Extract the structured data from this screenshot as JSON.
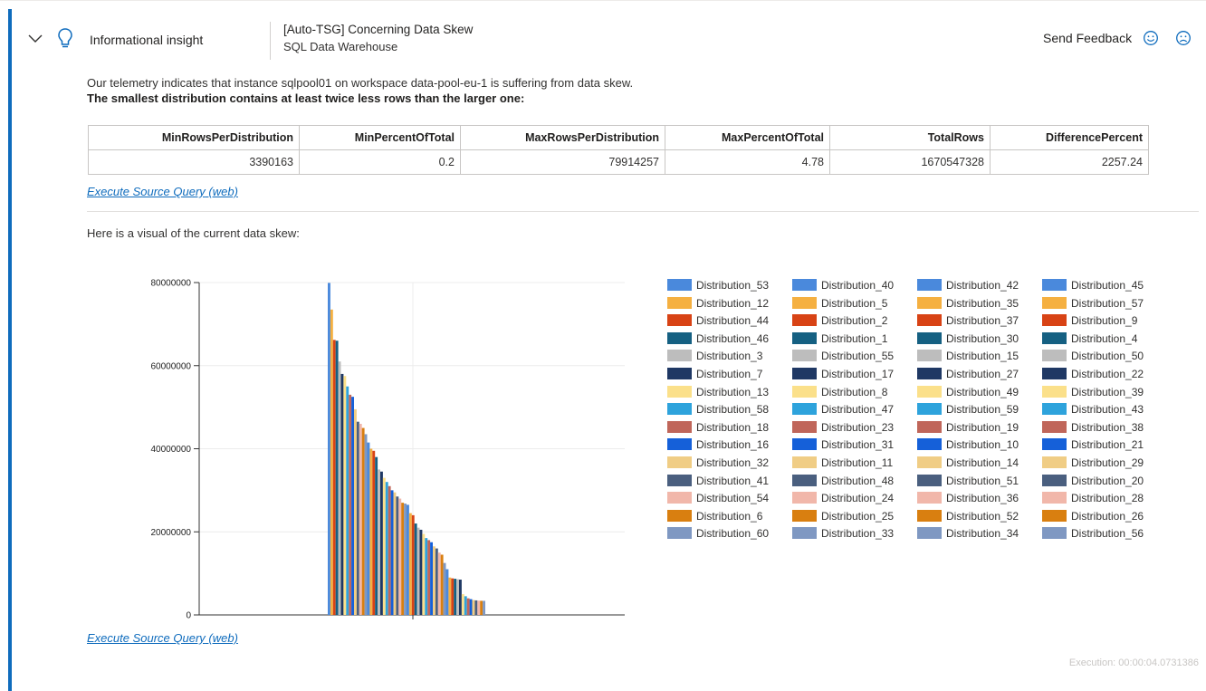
{
  "header": {
    "insight_label": "Informational insight",
    "title": "[Auto-TSG] Concerning Data Skew",
    "subtitle": "SQL Data Warehouse",
    "feedback_label": "Send Feedback",
    "icons": [
      "chevron-down-icon",
      "lightbulb-icon",
      "smiley-icon",
      "frown-icon"
    ]
  },
  "body": {
    "intro": "Our telemetry indicates that instance sqlpool01 on workspace data-pool-eu-1 is suffering from data skew.",
    "bold_line": "The smallest distribution contains at least twice less rows than the larger one:",
    "link_text": "Execute Source Query",
    "link_suffix": "(web)",
    "visual_text": "Here is a visual of the current data skew:",
    "execution": "Execution: 00:00:04.0731386"
  },
  "table": {
    "columns": [
      "MinRowsPerDistribution",
      "MinPercentOfTotal",
      "MaxRowsPerDistribution",
      "MaxPercentOfTotal",
      "TotalRows",
      "DifferencePercent"
    ],
    "rows": [
      [
        "3390163",
        "0.2",
        "79914257",
        "4.78",
        "1670547328",
        "2257.24"
      ]
    ]
  },
  "colors": {
    "accent": "#0f6cbd",
    "link": "#0f6cbd"
  },
  "chart_data": {
    "type": "bar",
    "title": "",
    "xlabel": "",
    "ylabel": "",
    "ylim": [
      0,
      80000000
    ],
    "yticks": [
      "0",
      "20000000",
      "40000000",
      "60000000",
      "80000000"
    ],
    "grid": true,
    "legend_position": "right",
    "categories": [
      "Distribution_53",
      "Distribution_40",
      "Distribution_42",
      "Distribution_45",
      "Distribution_12",
      "Distribution_5",
      "Distribution_35",
      "Distribution_57",
      "Distribution_44",
      "Distribution_2",
      "Distribution_37",
      "Distribution_9",
      "Distribution_46",
      "Distribution_1",
      "Distribution_30",
      "Distribution_4",
      "Distribution_3",
      "Distribution_55",
      "Distribution_15",
      "Distribution_50",
      "Distribution_7",
      "Distribution_17",
      "Distribution_27",
      "Distribution_22",
      "Distribution_13",
      "Distribution_8",
      "Distribution_49",
      "Distribution_39",
      "Distribution_58",
      "Distribution_47",
      "Distribution_59",
      "Distribution_43",
      "Distribution_18",
      "Distribution_23",
      "Distribution_19",
      "Distribution_38",
      "Distribution_16",
      "Distribution_31",
      "Distribution_10",
      "Distribution_21",
      "Distribution_32",
      "Distribution_11",
      "Distribution_14",
      "Distribution_29",
      "Distribution_41",
      "Distribution_48",
      "Distribution_51",
      "Distribution_20",
      "Distribution_54",
      "Distribution_24",
      "Distribution_36",
      "Distribution_28",
      "Distribution_6",
      "Distribution_25",
      "Distribution_52",
      "Distribution_26",
      "Distribution_60",
      "Distribution_33",
      "Distribution_34",
      "Distribution_56"
    ],
    "colors": [
      "#4a89dc",
      "#f5b041",
      "#d84315",
      "#156082",
      "#bdbdbd",
      "#1f3864",
      "#fbe08a",
      "#2ea3dc",
      "#c0665a",
      "#1560d9",
      "#f0cd85",
      "#4a5f7f",
      "#f1b7aa",
      "#d97f10",
      "#7f98c2"
    ],
    "values": [
      79914257,
      73500000,
      66200000,
      66000000,
      61000000,
      58000000,
      57500000,
      55000000,
      53000000,
      52500000,
      49500000,
      46500000,
      46000000,
      45000000,
      43500000,
      41500000,
      40000000,
      39500000,
      38000000,
      35000000,
      34500000,
      33000000,
      32000000,
      31000000,
      30000000,
      29500000,
      28500000,
      28000000,
      27000000,
      26800000,
      26500000,
      24500000,
      24000000,
      22000000,
      21000000,
      20500000,
      19500000,
      18500000,
      18000000,
      17500000,
      16500000,
      16000000,
      15000000,
      14500000,
      12500000,
      11000000,
      9000000,
      8800000,
      8700000,
      8600000,
      8500000,
      5000000,
      4500000,
      4000000,
      3800000,
      3600000,
      3500000,
      3450000,
      3400000,
      3390163
    ]
  }
}
